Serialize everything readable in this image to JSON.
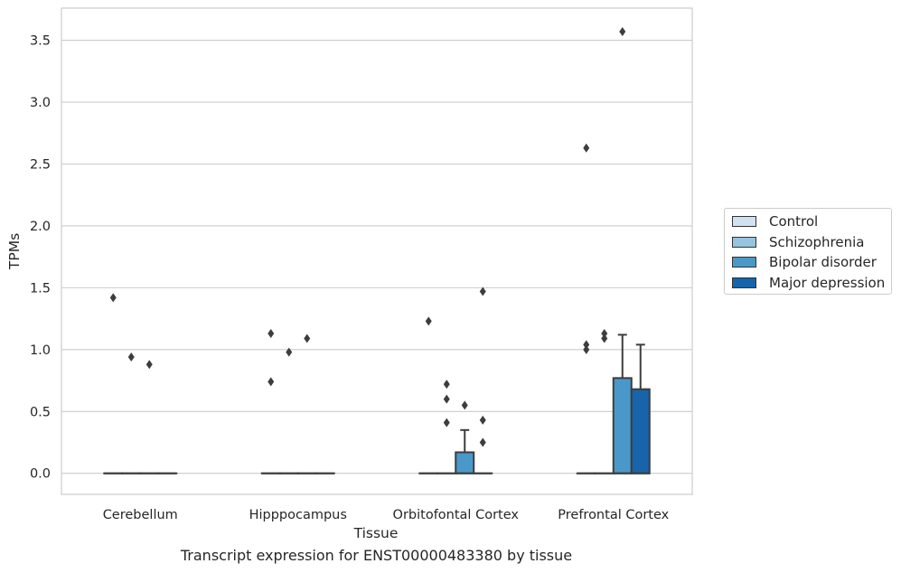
{
  "chart_data": {
    "type": "box",
    "xlabel": "Tissue",
    "ylabel": "TPMs",
    "caption": "Transcript expression for ENST00000483380 by tissue",
    "categories": [
      "Cerebellum",
      "Hipppocampus",
      "Orbitofontal Cortex",
      "Prefrontal Cortex"
    ],
    "ylim": [
      -0.17,
      3.76
    ],
    "yticks": [
      0.0,
      0.5,
      1.0,
      1.5,
      2.0,
      2.5,
      3.0,
      3.5
    ],
    "ytick_labels": [
      "0.0",
      "0.5",
      "1.0",
      "1.5",
      "2.0",
      "2.5",
      "3.0",
      "3.5"
    ],
    "grid": "horizontal",
    "legend_position": "right",
    "series": [
      {
        "name": "Control",
        "color": "#d0e1f2",
        "boxes": [
          {
            "q1": 0,
            "median": 0,
            "q3": 0,
            "whisker_low": 0,
            "whisker_high": 0,
            "outliers": [
              1.42
            ]
          },
          {
            "q1": 0,
            "median": 0,
            "q3": 0,
            "whisker_low": 0,
            "whisker_high": 0,
            "outliers": [
              0.74,
              1.13
            ]
          },
          {
            "q1": 0,
            "median": 0,
            "q3": 0,
            "whisker_low": 0,
            "whisker_high": 0,
            "outliers": [
              1.23
            ]
          },
          {
            "q1": 0,
            "median": 0,
            "q3": 0,
            "whisker_low": 0,
            "whisker_high": 0,
            "outliers": [
              1.0,
              1.04,
              2.63
            ]
          }
        ]
      },
      {
        "name": "Schizophrenia",
        "color": "#94c4df",
        "boxes": [
          {
            "q1": 0,
            "median": 0,
            "q3": 0,
            "whisker_low": 0,
            "whisker_high": 0,
            "outliers": [
              0.94
            ]
          },
          {
            "q1": 0,
            "median": 0,
            "q3": 0,
            "whisker_low": 0,
            "whisker_high": 0,
            "outliers": [
              0.98
            ]
          },
          {
            "q1": 0,
            "median": 0,
            "q3": 0,
            "whisker_low": 0,
            "whisker_high": 0,
            "outliers": [
              0.41,
              0.6,
              0.72
            ]
          },
          {
            "q1": 0,
            "median": 0,
            "q3": 0,
            "whisker_low": 0,
            "whisker_high": 0,
            "outliers": [
              1.09,
              1.13
            ]
          }
        ]
      },
      {
        "name": "Bipolar disorder",
        "color": "#4a98c9",
        "boxes": [
          {
            "q1": 0,
            "median": 0,
            "q3": 0,
            "whisker_low": 0,
            "whisker_high": 0,
            "outliers": [
              0.88
            ]
          },
          {
            "q1": 0,
            "median": 0,
            "q3": 0,
            "whisker_low": 0,
            "whisker_high": 0,
            "outliers": [
              1.09
            ]
          },
          {
            "q1": 0,
            "median": 0,
            "q3": 0.17,
            "whisker_low": 0,
            "whisker_high": 0.35,
            "outliers": [
              0.55
            ]
          },
          {
            "q1": 0,
            "median": 0,
            "q3": 0.77,
            "whisker_low": 0,
            "whisker_high": 1.12,
            "outliers": [
              3.57
            ]
          }
        ]
      },
      {
        "name": "Major depression",
        "color": "#1764ab",
        "boxes": [
          {
            "q1": 0,
            "median": 0,
            "q3": 0,
            "whisker_low": 0,
            "whisker_high": 0,
            "outliers": []
          },
          {
            "q1": 0,
            "median": 0,
            "q3": 0,
            "whisker_low": 0,
            "whisker_high": 0,
            "outliers": []
          },
          {
            "q1": 0,
            "median": 0,
            "q3": 0,
            "whisker_low": 0,
            "whisker_high": 0,
            "outliers": [
              0.25,
              0.43,
              1.47
            ]
          },
          {
            "q1": 0,
            "median": 0,
            "q3": 0.68,
            "whisker_low": 0,
            "whisker_high": 1.04,
            "outliers": []
          }
        ]
      }
    ]
  }
}
